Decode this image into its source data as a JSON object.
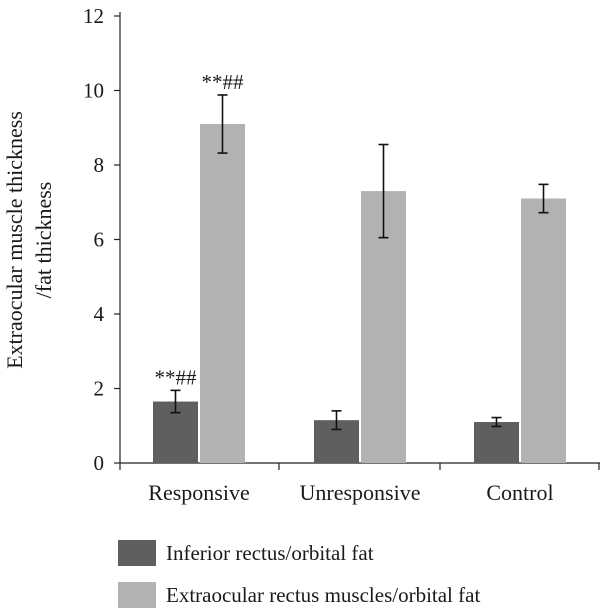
{
  "chart_data": {
    "type": "bar",
    "title": "",
    "xlabel": "",
    "ylabel": [
      "Extraocular muscle thickness",
      "/fat thickness"
    ],
    "ylim": [
      0,
      12
    ],
    "yticks": [
      0,
      2,
      4,
      6,
      8,
      10,
      12
    ],
    "categories": [
      "Responsive",
      "Unresponsive",
      "Control"
    ],
    "series": [
      {
        "name": "Inferior rectus/orbital fat",
        "color": "#5f5f5f",
        "values": [
          1.65,
          1.15,
          1.1
        ],
        "errors": [
          0.3,
          0.25,
          0.12
        ],
        "annotations": [
          "**##",
          "",
          ""
        ]
      },
      {
        "name": "Extraocular rectus muscles/orbital fat",
        "color": "#b2b2b2",
        "values": [
          9.1,
          7.3,
          7.1
        ],
        "errors": [
          0.78,
          1.25,
          0.38
        ],
        "annotations": [
          "**##",
          "",
          ""
        ]
      }
    ],
    "legend": "bottom",
    "grid": false
  }
}
